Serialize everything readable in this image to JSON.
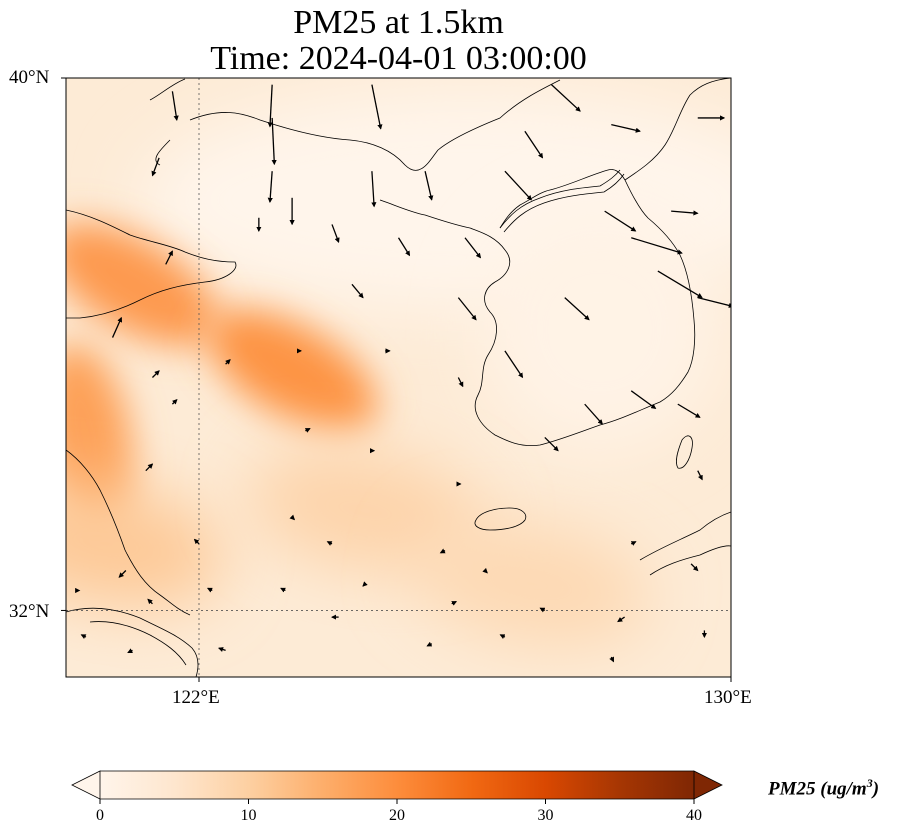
{
  "title": {
    "line1": "PM25 at 1.5km",
    "line2": "Time: 2024-04-01 03:00:00"
  },
  "axes": {
    "lat_labels": [
      "40°N",
      "32°N"
    ],
    "lon_labels": [
      "122°E",
      "130°E"
    ],
    "lon_range": [
      120,
      130
    ],
    "lat_range": [
      31,
      40
    ],
    "gridlines": {
      "lon": 122,
      "lat": 32
    }
  },
  "colorbar": {
    "ticks": [
      "0",
      "10",
      "20",
      "30",
      "40"
    ],
    "range": [
      0,
      40
    ],
    "label": "PM25 (ug/m",
    "label_sup": "3",
    "label_end": ")",
    "colormap": [
      "#fff5eb",
      "#fee6ce",
      "#fdd0a2",
      "#fdae6b",
      "#fd8d3c",
      "#f16913",
      "#d94801",
      "#a63603",
      "#7f2704"
    ]
  },
  "field": {
    "description_units": "ug/m3",
    "hotspots": [
      {
        "lon": 121.0,
        "lat": 36.9,
        "value": 18
      },
      {
        "lon": 123.4,
        "lat": 35.6,
        "value": 19
      },
      {
        "lon": 120.3,
        "lat": 34.6,
        "value": 17
      },
      {
        "lon": 120.6,
        "lat": 33.0,
        "value": 11
      },
      {
        "lon": 124.5,
        "lat": 33.5,
        "value": 9
      },
      {
        "lon": 127.0,
        "lat": 32.4,
        "value": 8
      }
    ],
    "background_value": 5
  },
  "wind_vectors": [
    {
      "lon": 121.6,
      "lat": 39.8,
      "u": 0.2,
      "v": -1.3
    },
    {
      "lon": 123.1,
      "lat": 39.9,
      "u": -0.1,
      "v": -1.9
    },
    {
      "lon": 124.6,
      "lat": 39.9,
      "u": 0.4,
      "v": -2.0
    },
    {
      "lon": 127.3,
      "lat": 39.9,
      "u": 1.3,
      "v": -1.2
    },
    {
      "lon": 129.5,
      "lat": 39.4,
      "u": 1.2,
      "v": 0.0
    },
    {
      "lon": 128.2,
      "lat": 39.3,
      "u": 1.3,
      "v": -0.3
    },
    {
      "lon": 126.9,
      "lat": 39.2,
      "u": 0.8,
      "v": -1.2
    },
    {
      "lon": 123.1,
      "lat": 39.4,
      "u": 0.1,
      "v": -2.1
    },
    {
      "lon": 121.4,
      "lat": 38.8,
      "u": -0.3,
      "v": -0.8
    },
    {
      "lon": 123.1,
      "lat": 38.6,
      "u": -0.1,
      "v": -1.4
    },
    {
      "lon": 124.6,
      "lat": 38.6,
      "u": 0.1,
      "v": -1.6
    },
    {
      "lon": 125.4,
      "lat": 38.6,
      "u": 0.3,
      "v": -1.3
    },
    {
      "lon": 126.6,
      "lat": 38.6,
      "u": 1.2,
      "v": -1.3
    },
    {
      "lon": 128.1,
      "lat": 38.0,
      "u": 1.4,
      "v": -0.9
    },
    {
      "lon": 129.1,
      "lat": 38.0,
      "u": 1.2,
      "v": -0.1
    },
    {
      "lon": 123.4,
      "lat": 38.2,
      "u": 0.0,
      "v": -1.2
    },
    {
      "lon": 122.9,
      "lat": 37.9,
      "u": 0.0,
      "v": -0.6
    },
    {
      "lon": 124.0,
      "lat": 37.8,
      "u": 0.3,
      "v": -0.8
    },
    {
      "lon": 125.0,
      "lat": 37.6,
      "u": 0.5,
      "v": -0.8
    },
    {
      "lon": 126.0,
      "lat": 37.6,
      "u": 0.7,
      "v": -0.9
    },
    {
      "lon": 128.5,
      "lat": 37.6,
      "u": 2.3,
      "v": -0.7
    },
    {
      "lon": 128.9,
      "lat": 37.1,
      "u": 2.0,
      "v": -1.2
    },
    {
      "lon": 121.5,
      "lat": 37.2,
      "u": 0.3,
      "v": 0.6
    },
    {
      "lon": 124.3,
      "lat": 36.9,
      "u": 0.5,
      "v": -0.6
    },
    {
      "lon": 125.9,
      "lat": 36.7,
      "u": 0.8,
      "v": -1.0
    },
    {
      "lon": 127.5,
      "lat": 36.7,
      "u": 1.1,
      "v": -1.0
    },
    {
      "lon": 129.5,
      "lat": 36.7,
      "u": 1.6,
      "v": -0.4
    },
    {
      "lon": 120.7,
      "lat": 36.1,
      "u": 0.4,
      "v": 0.9
    },
    {
      "lon": 123.5,
      "lat": 35.9,
      "u": 0.1,
      "v": 0.0
    },
    {
      "lon": 124.8,
      "lat": 35.9,
      "u": 0.2,
      "v": 0.0
    },
    {
      "lon": 126.6,
      "lat": 35.9,
      "u": 0.8,
      "v": -1.2
    },
    {
      "lon": 125.9,
      "lat": 35.5,
      "u": 0.2,
      "v": -0.4
    },
    {
      "lon": 121.3,
      "lat": 35.5,
      "u": 0.3,
      "v": 0.3
    },
    {
      "lon": 122.4,
      "lat": 35.7,
      "u": 0.2,
      "v": 0.2
    },
    {
      "lon": 127.8,
      "lat": 35.1,
      "u": 0.8,
      "v": -0.9
    },
    {
      "lon": 128.5,
      "lat": 35.3,
      "u": 1.1,
      "v": -0.8
    },
    {
      "lon": 129.2,
      "lat": 35.1,
      "u": 1.0,
      "v": -0.6
    },
    {
      "lon": 121.6,
      "lat": 35.1,
      "u": 0.2,
      "v": 0.2
    },
    {
      "lon": 123.6,
      "lat": 34.7,
      "u": 0.2,
      "v": 0.1
    },
    {
      "lon": 121.2,
      "lat": 34.1,
      "u": 0.3,
      "v": 0.3
    },
    {
      "lon": 124.6,
      "lat": 34.4,
      "u": 0.1,
      "v": 0.0
    },
    {
      "lon": 127.2,
      "lat": 34.6,
      "u": 0.6,
      "v": -0.6
    },
    {
      "lon": 129.5,
      "lat": 34.1,
      "u": 0.2,
      "v": -0.4
    },
    {
      "lon": 125.9,
      "lat": 33.9,
      "u": 0.1,
      "v": 0.0
    },
    {
      "lon": 122.0,
      "lat": 33.0,
      "u": -0.2,
      "v": 0.2
    },
    {
      "lon": 123.4,
      "lat": 33.4,
      "u": 0.1,
      "v": -0.1
    },
    {
      "lon": 124.0,
      "lat": 33.0,
      "u": -0.2,
      "v": 0.1
    },
    {
      "lon": 125.7,
      "lat": 32.9,
      "u": -0.2,
      "v": -0.1
    },
    {
      "lon": 128.5,
      "lat": 33.0,
      "u": 0.2,
      "v": 0.1
    },
    {
      "lon": 129.4,
      "lat": 32.7,
      "u": 0.3,
      "v": -0.3
    },
    {
      "lon": 120.9,
      "lat": 32.6,
      "u": -0.3,
      "v": -0.3
    },
    {
      "lon": 120.2,
      "lat": 32.3,
      "u": 0.0,
      "v": 0.0
    },
    {
      "lon": 121.3,
      "lat": 32.1,
      "u": -0.2,
      "v": 0.2
    },
    {
      "lon": 122.2,
      "lat": 32.3,
      "u": -0.2,
      "v": 0.1
    },
    {
      "lon": 123.3,
      "lat": 32.3,
      "u": -0.2,
      "v": 0.1
    },
    {
      "lon": 124.5,
      "lat": 32.4,
      "u": -0.1,
      "v": -0.1
    },
    {
      "lon": 125.8,
      "lat": 32.1,
      "u": 0.2,
      "v": 0.1
    },
    {
      "lon": 126.3,
      "lat": 32.6,
      "u": 0.1,
      "v": -0.1
    },
    {
      "lon": 127.2,
      "lat": 32.0,
      "u": -0.2,
      "v": 0.1
    },
    {
      "lon": 128.4,
      "lat": 31.9,
      "u": -0.3,
      "v": -0.2
    },
    {
      "lon": 120.3,
      "lat": 31.6,
      "u": -0.2,
      "v": 0.1
    },
    {
      "lon": 121.0,
      "lat": 31.4,
      "u": -0.2,
      "v": -0.1
    },
    {
      "lon": 122.4,
      "lat": 31.4,
      "u": -0.3,
      "v": 0.1
    },
    {
      "lon": 124.1,
      "lat": 31.9,
      "u": -0.3,
      "v": 0.0
    },
    {
      "lon": 125.5,
      "lat": 31.5,
      "u": -0.2,
      "v": -0.1
    },
    {
      "lon": 126.6,
      "lat": 31.6,
      "u": -0.2,
      "v": 0.1
    },
    {
      "lon": 128.2,
      "lat": 31.3,
      "u": 0.1,
      "v": -0.2
    },
    {
      "lon": 129.6,
      "lat": 31.7,
      "u": 0.0,
      "v": -0.3
    }
  ]
}
